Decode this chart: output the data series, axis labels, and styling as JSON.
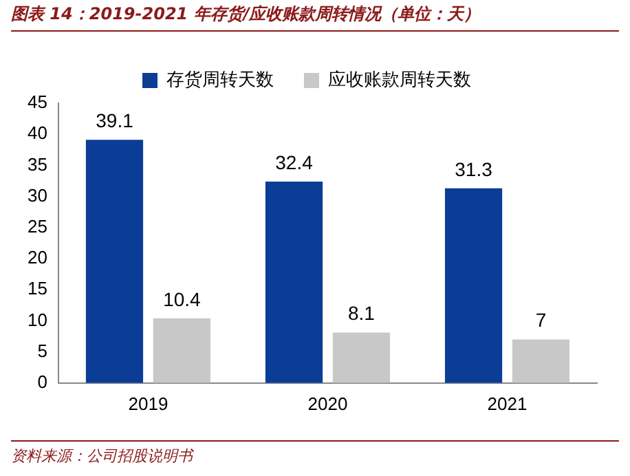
{
  "chart_data": {
    "type": "bar",
    "title": "图表 14：2019-2021 年存货/应收账款周转情况（单位：天）",
    "categories": [
      "2019",
      "2020",
      "2021"
    ],
    "series": [
      {
        "name": "存货周转天数",
        "color": "#0b3d97",
        "values": [
          39.1,
          32.4,
          31.3
        ]
      },
      {
        "name": "应收账款周转天数",
        "color": "#c8c8c8",
        "values": [
          10.4,
          8.1,
          7
        ]
      }
    ],
    "ylim": [
      0,
      45
    ],
    "yticks": [
      0,
      5,
      10,
      15,
      20,
      25,
      30,
      35,
      40,
      45
    ],
    "grid": false,
    "legend": "top",
    "data_labels": true,
    "annotations": [
      "资料来源：公司招股说明书"
    ]
  }
}
